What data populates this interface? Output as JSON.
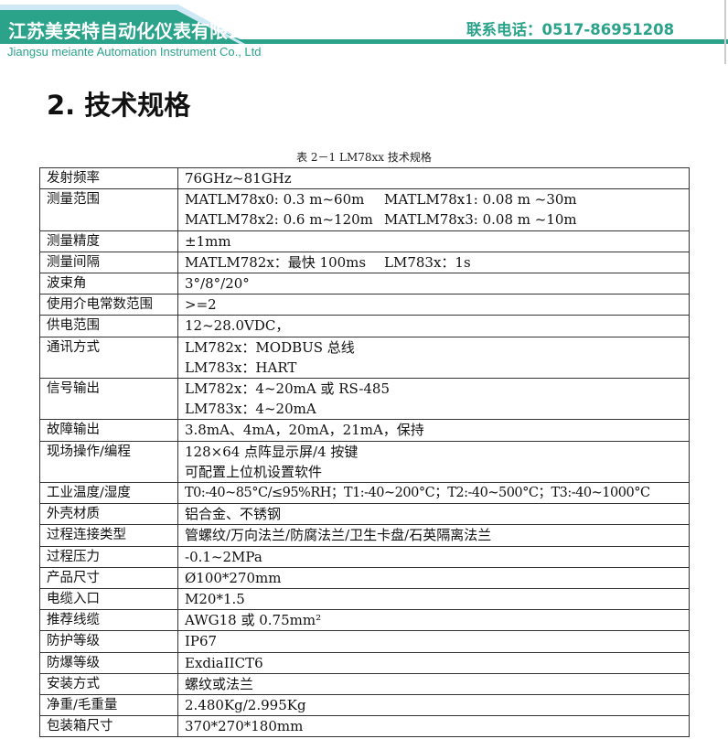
{
  "header": {
    "company_cn": "江苏美安特自动化仪表有限公司",
    "company_en": "Jiangsu meiante Automation Instrument Co., Ltd",
    "phone": "联系电话：0517-86951208",
    "colors": {
      "brand": "#2aa38a",
      "stripe": "#cfe8f5"
    }
  },
  "section_title": "2. 技术规格",
  "table_caption": "表 2－1 LM78xx 技术规格",
  "specs": [
    {
      "label": "发射频率",
      "lines": [
        "76GHz~81GHz"
      ]
    },
    {
      "label": "测量范围",
      "lines": [
        [
          "MATLM78x0: 0.3 m~60m",
          "MATLM78x1: 0.08 m ~30m"
        ],
        [
          "MATLM78x2: 0.6 m~120m",
          "MATLM78x3: 0.08 m ~10m"
        ]
      ]
    },
    {
      "label": "测量精度",
      "lines": [
        "±1mm"
      ]
    },
    {
      "label": "测量间隔",
      "lines": [
        [
          "MATLM782x：最快 100ms",
          "LM783x：1s"
        ]
      ]
    },
    {
      "label": "波束角",
      "lines": [
        "3°/8°/20°"
      ]
    },
    {
      "label": "使用介电常数范围",
      "lines": [
        ">=2"
      ]
    },
    {
      "label": "供电范围",
      "lines": [
        "12~28.0VDC，"
      ]
    },
    {
      "label": "通讯方式",
      "lines": [
        "LM782x：MODBUS 总线",
        "LM783x：HART"
      ]
    },
    {
      "label": "信号输出",
      "lines": [
        "LM782x：4~20mA 或 RS-485",
        "LM783x：4~20mA"
      ]
    },
    {
      "label": "故障输出",
      "lines": [
        "3.8mA、4mA，20mA，21mA，保持"
      ]
    },
    {
      "label": "现场操作/编程",
      "lines": [
        "128×64  点阵显示屏/4 按键",
        "可配置上位机设置软件"
      ]
    },
    {
      "label": "工业温度/湿度",
      "lines": [
        "T0:-40~85°C/≤95%RH；T1:-40~200°C；T2:-40~500°C；T3:-40~1000°C"
      ]
    },
    {
      "label": "外壳材质",
      "lines": [
        "铝合金、不锈钢"
      ]
    },
    {
      "label": "过程连接类型",
      "lines": [
        "管螺纹/万向法兰/防腐法兰/卫生卡盘/石英隔离法兰"
      ]
    },
    {
      "label": "过程压力",
      "lines": [
        "-0.1~2MPa"
      ]
    },
    {
      "label": "产品尺寸",
      "lines": [
        "Ø100*270mm"
      ]
    },
    {
      "label": "电缆入口",
      "lines": [
        "M20*1.5"
      ]
    },
    {
      "label": "推荐线缆",
      "lines": [
        "AWG18 或 0.75mm²"
      ]
    },
    {
      "label": "防护等级",
      "lines": [
        "IP67"
      ]
    },
    {
      "label": "防爆等级",
      "lines": [
        "ExdiaIICT6"
      ]
    },
    {
      "label": "安装方式",
      "lines": [
        "螺纹或法兰"
      ]
    },
    {
      "label": "净重/毛重量",
      "lines": [
        "2.480Kg/2.995Kg"
      ]
    },
    {
      "label": "包装箱尺寸",
      "lines": [
        "370*270*180mm"
      ]
    }
  ]
}
